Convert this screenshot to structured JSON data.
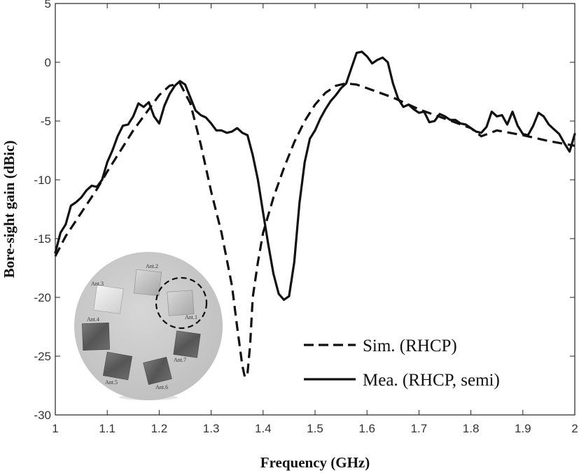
{
  "chart_data": {
    "type": "line",
    "title": "",
    "xlabel": "Frequency (GHz)",
    "ylabel": "Bore-sight gain (dBic)",
    "xlim": [
      1,
      2
    ],
    "ylim": [
      -30,
      5
    ],
    "xticks": [
      1,
      1.1,
      1.2,
      1.3,
      1.4,
      1.5,
      1.6,
      1.7,
      1.8,
      1.9,
      2
    ],
    "xtick_labels": [
      "1",
      "1.1",
      "1.2",
      "1.3",
      "1.4",
      "1.5",
      "1.6",
      "1.7",
      "1.8",
      "1.9",
      "2"
    ],
    "yticks": [
      5,
      0,
      -5,
      -10,
      -15,
      -20,
      -25,
      -30
    ],
    "ytick_labels": [
      "5",
      "0",
      "-5",
      "-10",
      "-15",
      "-20",
      "-25",
      "-30"
    ],
    "grid": false,
    "legend_position": "bottom-right",
    "series": [
      {
        "name": "Sim. (RHCP)",
        "style": "dashed",
        "color": "#111111",
        "x": [
          1.0,
          1.02,
          1.05,
          1.08,
          1.1,
          1.13,
          1.15,
          1.18,
          1.2,
          1.22,
          1.24,
          1.26,
          1.28,
          1.3,
          1.32,
          1.34,
          1.35,
          1.36,
          1.365,
          1.37,
          1.375,
          1.38,
          1.39,
          1.4,
          1.42,
          1.44,
          1.46,
          1.48,
          1.5,
          1.52,
          1.54,
          1.56,
          1.58,
          1.6,
          1.65,
          1.7,
          1.75,
          1.8,
          1.82,
          1.85,
          1.9,
          1.95,
          2.0
        ],
        "y": [
          -16.5,
          -14.8,
          -12.8,
          -10.8,
          -9.3,
          -7.2,
          -5.8,
          -4.0,
          -2.8,
          -2.0,
          -1.8,
          -3.5,
          -7.0,
          -11.0,
          -14.5,
          -19.0,
          -22.5,
          -25.8,
          -26.8,
          -26.5,
          -24.0,
          -20.0,
          -17.0,
          -14.5,
          -11.5,
          -9.0,
          -6.8,
          -5.0,
          -3.6,
          -2.6,
          -2.0,
          -1.8,
          -1.9,
          -2.2,
          -3.0,
          -4.0,
          -4.8,
          -5.6,
          -6.3,
          -5.8,
          -6.2,
          -6.7,
          -7.1
        ]
      },
      {
        "name": "Mea. (RHCP, semi)",
        "style": "solid",
        "color": "#111111",
        "x": [
          1.0,
          1.01,
          1.02,
          1.03,
          1.04,
          1.05,
          1.06,
          1.07,
          1.08,
          1.09,
          1.1,
          1.11,
          1.12,
          1.13,
          1.14,
          1.15,
          1.16,
          1.17,
          1.18,
          1.19,
          1.2,
          1.21,
          1.22,
          1.23,
          1.24,
          1.25,
          1.26,
          1.27,
          1.28,
          1.29,
          1.3,
          1.31,
          1.32,
          1.33,
          1.34,
          1.35,
          1.36,
          1.37,
          1.38,
          1.39,
          1.4,
          1.41,
          1.42,
          1.43,
          1.44,
          1.45,
          1.46,
          1.47,
          1.48,
          1.49,
          1.5,
          1.51,
          1.52,
          1.53,
          1.54,
          1.55,
          1.56,
          1.57,
          1.58,
          1.59,
          1.6,
          1.61,
          1.62,
          1.63,
          1.64,
          1.65,
          1.66,
          1.67,
          1.68,
          1.69,
          1.7,
          1.71,
          1.72,
          1.73,
          1.74,
          1.75,
          1.76,
          1.77,
          1.78,
          1.79,
          1.8,
          1.81,
          1.82,
          1.83,
          1.84,
          1.85,
          1.86,
          1.87,
          1.88,
          1.89,
          1.9,
          1.91,
          1.92,
          1.93,
          1.94,
          1.95,
          1.96,
          1.97,
          1.98,
          1.99,
          2.0
        ],
        "y": [
          -16.2,
          -14.5,
          -13.8,
          -12.2,
          -11.9,
          -11.5,
          -10.9,
          -10.5,
          -10.6,
          -10.0,
          -8.5,
          -7.5,
          -6.3,
          -5.4,
          -5.3,
          -4.6,
          -3.5,
          -3.8,
          -3.4,
          -4.6,
          -5.2,
          -3.7,
          -2.7,
          -2.0,
          -1.6,
          -1.9,
          -3.0,
          -4.1,
          -4.5,
          -4.7,
          -5.2,
          -5.8,
          -5.8,
          -6.0,
          -5.9,
          -5.6,
          -6.0,
          -6.2,
          -7.9,
          -10.0,
          -12.8,
          -15.5,
          -18.0,
          -19.7,
          -20.2,
          -19.9,
          -17.0,
          -12.0,
          -8.5,
          -6.5,
          -5.8,
          -4.8,
          -4.0,
          -3.3,
          -2.8,
          -2.2,
          -1.8,
          -0.5,
          0.8,
          0.9,
          0.5,
          -0.1,
          0.2,
          0.4,
          0.0,
          -1.8,
          -3.1,
          -3.8,
          -3.6,
          -4.0,
          -4.3,
          -4.2,
          -5.1,
          -5.0,
          -4.4,
          -4.6,
          -4.9,
          -4.9,
          -5.2,
          -5.3,
          -5.6,
          -5.9,
          -6.0,
          -5.5,
          -4.2,
          -4.6,
          -4.5,
          -5.3,
          -4.2,
          -5.4,
          -6.1,
          -6.2,
          -5.4,
          -4.3,
          -4.6,
          -5.3,
          -5.7,
          -6.1,
          -6.9,
          -7.6,
          -6.1
        ]
      }
    ]
  },
  "inset_photo": {
    "labels": [
      "Ant.1",
      "Ant.2",
      "Ant.3",
      "Ant.4",
      "Ant.5",
      "Ant.6",
      "Ant.7"
    ],
    "background_color": "#c8c8c8",
    "highlighted": "Ant.1"
  }
}
